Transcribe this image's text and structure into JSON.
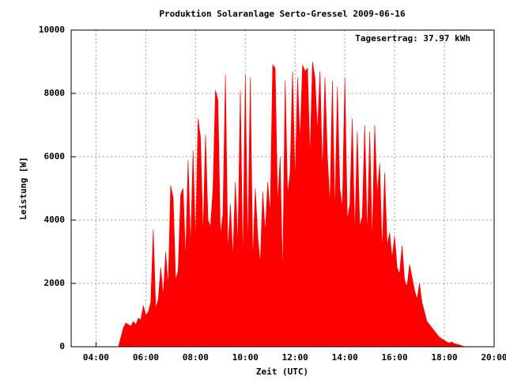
{
  "chart_data": {
    "type": "area",
    "title": "Produktion Solaranlage Serto-Gressel 2009-06-16",
    "annotation": "Tagesertrag: 37.97 kWh",
    "x_label": "Zeit (UTC)",
    "y_label": "Leistung [W]",
    "color": "#ff0000",
    "grid": true,
    "xlim": [
      3,
      20
    ],
    "ylim": [
      0,
      10000
    ],
    "yticks": [
      0,
      2000,
      4000,
      6000,
      8000,
      10000
    ],
    "xticks": [
      {
        "value": 4,
        "label": "04:00"
      },
      {
        "value": 6,
        "label": "06:00"
      },
      {
        "value": 8,
        "label": "08:00"
      },
      {
        "value": 10,
        "label": "10:00"
      },
      {
        "value": 12,
        "label": "12:00"
      },
      {
        "value": 14,
        "label": "14:00"
      },
      {
        "value": 16,
        "label": "16:00"
      },
      {
        "value": 18,
        "label": "18:00"
      },
      {
        "value": 20,
        "label": "20:00"
      }
    ],
    "x": [
      4.9,
      5.0,
      5.1,
      5.2,
      5.3,
      5.4,
      5.5,
      5.6,
      5.7,
      5.8,
      5.9,
      6.0,
      6.1,
      6.2,
      6.3,
      6.4,
      6.5,
      6.6,
      6.7,
      6.8,
      6.9,
      7.0,
      7.1,
      7.2,
      7.3,
      7.4,
      7.5,
      7.6,
      7.7,
      7.8,
      7.9,
      8.0,
      8.1,
      8.2,
      8.3,
      8.4,
      8.5,
      8.6,
      8.7,
      8.8,
      8.9,
      9.0,
      9.1,
      9.2,
      9.3,
      9.4,
      9.5,
      9.6,
      9.7,
      9.8,
      9.9,
      10.0,
      10.1,
      10.2,
      10.3,
      10.4,
      10.5,
      10.6,
      10.7,
      10.8,
      10.9,
      11.0,
      11.1,
      11.2,
      11.3,
      11.4,
      11.5,
      11.6,
      11.7,
      11.8,
      11.9,
      12.0,
      12.1,
      12.2,
      12.3,
      12.4,
      12.5,
      12.6,
      12.7,
      12.8,
      12.9,
      13.0,
      13.1,
      13.2,
      13.3,
      13.4,
      13.5,
      13.6,
      13.7,
      13.8,
      13.9,
      14.0,
      14.1,
      14.2,
      14.3,
      14.4,
      14.5,
      14.6,
      14.7,
      14.8,
      14.9,
      15.0,
      15.1,
      15.2,
      15.3,
      15.4,
      15.5,
      15.6,
      15.7,
      15.8,
      15.9,
      16.0,
      16.1,
      16.2,
      16.3,
      16.4,
      16.5,
      16.6,
      16.7,
      16.8,
      16.9,
      17.0,
      17.1,
      17.2,
      17.3,
      17.4,
      17.5,
      17.6,
      17.7,
      17.8,
      17.9,
      18.0,
      18.1,
      18.2,
      18.3,
      18.4,
      18.5,
      18.6,
      18.7,
      18.8,
      18.9
    ],
    "values": [
      0,
      300,
      600,
      750,
      700,
      650,
      800,
      700,
      900,
      850,
      1300,
      1000,
      1100,
      1400,
      3700,
      1200,
      1500,
      2500,
      1600,
      3000,
      1900,
      5100,
      4700,
      2100,
      2400,
      4800,
      5000,
      2800,
      5900,
      3200,
      6200,
      3300,
      7200,
      6600,
      3500,
      6700,
      4000,
      3800,
      5000,
      8100,
      7800,
      3500,
      4200,
      8600,
      3000,
      4500,
      2800,
      5200,
      3200,
      8100,
      2600,
      8600,
      3000,
      8500,
      2700,
      5000,
      3500,
      2600,
      4900,
      3600,
      5200,
      4200,
      8900,
      8800,
      4500,
      6000,
      2200,
      8400,
      4800,
      5500,
      8700,
      5200,
      8500,
      6500,
      8900,
      8700,
      8800,
      6000,
      9000,
      8500,
      6800,
      8700,
      5500,
      8500,
      6000,
      4500,
      8400,
      4200,
      8200,
      5000,
      4400,
      8500,
      4000,
      4500,
      7200,
      3600,
      6800,
      3800,
      4100,
      7000,
      3500,
      6800,
      3300,
      7000,
      4800,
      5800,
      3000,
      5500,
      3200,
      3600,
      2800,
      3500,
      2500,
      2300,
      3200,
      2100,
      1900,
      2600,
      2200,
      1800,
      1500,
      2000,
      1400,
      1100,
      800,
      700,
      600,
      500,
      400,
      300,
      250,
      200,
      150,
      120,
      150,
      100,
      80,
      60,
      30,
      0,
      0
    ]
  }
}
